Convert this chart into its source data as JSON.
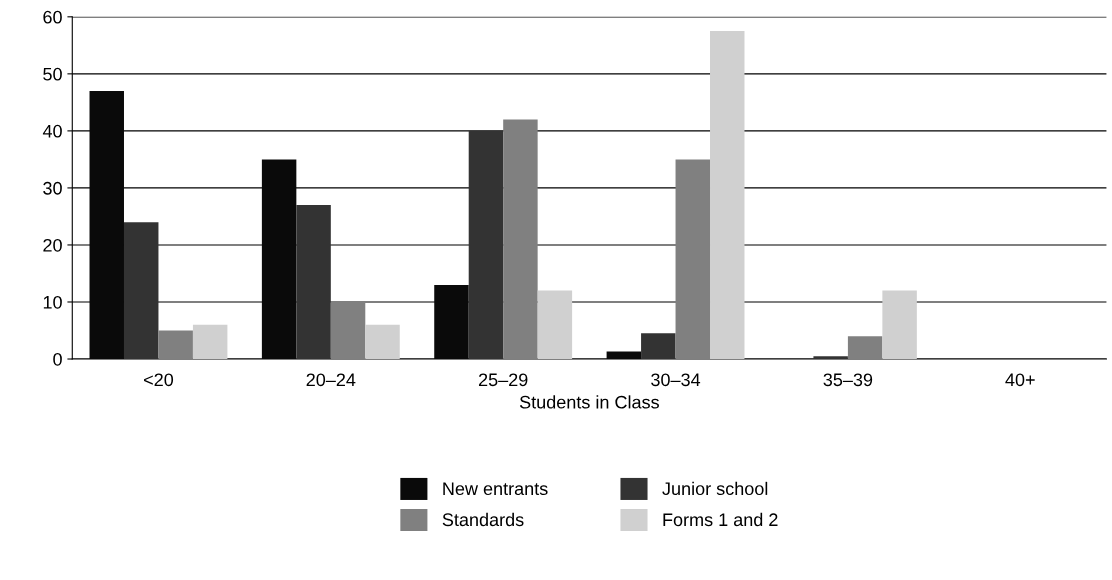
{
  "chart_data": {
    "type": "bar",
    "xlabel": "Students in Class",
    "categories": [
      "<20",
      "20–24",
      "25–29",
      "30–34",
      "35–39",
      "40+"
    ],
    "series": [
      {
        "name": "New entrants",
        "color": "#0a0a0a",
        "values": [
          47,
          35,
          13,
          1.3,
          0,
          0
        ]
      },
      {
        "name": "Junior school",
        "color": "#333333",
        "values": [
          24,
          27,
          40,
          4.5,
          0.5,
          0
        ]
      },
      {
        "name": "Standards",
        "color": "#808080",
        "values": [
          5,
          10,
          42,
          35,
          4,
          0
        ]
      },
      {
        "name": "Forms 1 and 2",
        "color": "#d0d0d0",
        "values": [
          6,
          6,
          12,
          57.5,
          12,
          0
        ]
      }
    ],
    "ylim": [
      0,
      60
    ],
    "yticks": [
      0,
      10,
      20,
      30,
      40,
      50,
      60
    ],
    "grid": "y",
    "legend": "bottom"
  }
}
